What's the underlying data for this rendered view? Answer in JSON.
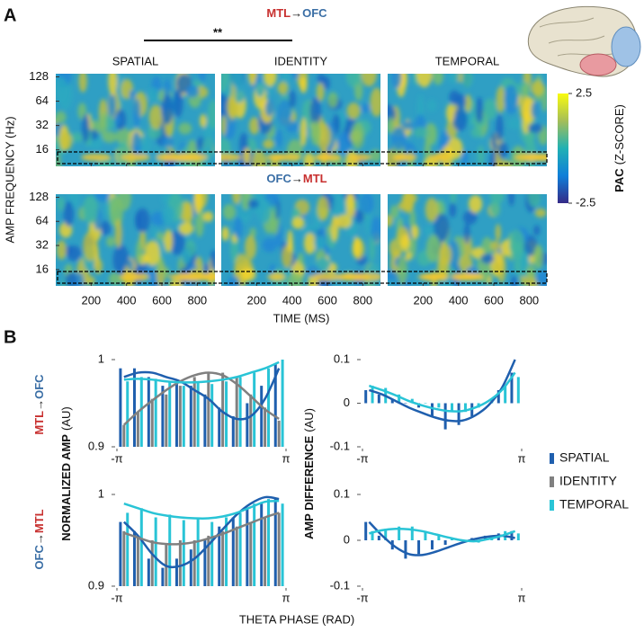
{
  "panel_a": {
    "label": "A",
    "significance": "**",
    "rows": [
      {
        "from": "MTL",
        "arrow": "→",
        "to": "OFC"
      },
      {
        "from": "OFC",
        "arrow": "→",
        "to": "MTL"
      }
    ],
    "columns": [
      "SPATIAL",
      "IDENTITY",
      "TEMPORAL"
    ],
    "ylabel": "AMP FREQUENCY (Hz)",
    "yticks": [
      128,
      64,
      32,
      16
    ],
    "ylim": [
      10,
      140
    ],
    "log_y": true,
    "xlabel": "TIME (MS)",
    "xticks": [
      200,
      400,
      600,
      800
    ],
    "xlim": [
      0,
      900
    ],
    "colorbar": {
      "lim": [
        -2.5,
        2.5
      ],
      "ticks": [
        2.5,
        -2.5
      ],
      "label_bold": "PAC",
      "label": "(Z-SCORE)"
    }
  },
  "panel_b": {
    "label": "B",
    "xlabel": "THETA PHASE (RAD)",
    "xlim": [
      -3.1416,
      3.1416
    ],
    "xticks": [
      {
        "value": -3.1416,
        "label": "-π"
      },
      {
        "value": 3.1416,
        "label": "π"
      }
    ],
    "x": [
      -2.88,
      -2.36,
      -1.83,
      -1.31,
      -0.79,
      -0.26,
      0.26,
      0.79,
      1.31,
      1.83,
      2.36,
      2.88
    ],
    "legend": [
      {
        "name": "SPATIAL",
        "color": "#1f5fae"
      },
      {
        "name": "IDENTITY",
        "color": "#808080"
      },
      {
        "name": "TEMPORAL",
        "color": "#29c4d6"
      }
    ],
    "rows": [
      {
        "from": "MTL",
        "arrow": "→",
        "to": "OFC"
      },
      {
        "from": "OFC",
        "arrow": "→",
        "to": "MTL"
      }
    ],
    "left": {
      "ylabel_bold": "NORMALIZED AMP",
      "ylabel": "(AU)",
      "ylim": [
        0.9,
        1.0
      ],
      "yticks": [
        1,
        0.9
      ],
      "plots": [
        {
          "series": [
            {
              "bars": [
                0.99,
                0.99,
                0.98,
                0.97,
                0.975,
                0.97,
                0.96,
                0.945,
                0.935,
                0.95,
                0.97,
                0.995
              ],
              "fit": [
                0.98,
                0.985,
                0.985,
                0.98,
                0.975,
                0.965,
                0.955,
                0.94,
                0.932,
                0.935,
                0.955,
                0.99
              ]
            },
            {
              "bars": [
                0.925,
                0.94,
                0.955,
                0.96,
                0.97,
                0.98,
                0.985,
                0.985,
                0.98,
                0.96,
                0.945,
                0.93
              ],
              "fit": [
                0.925,
                0.94,
                0.953,
                0.965,
                0.975,
                0.982,
                0.985,
                0.982,
                0.972,
                0.958,
                0.943,
                0.932
              ]
            },
            {
              "bars": [
                0.975,
                0.98,
                0.978,
                0.975,
                0.97,
                0.975,
                0.972,
                0.975,
                0.98,
                0.985,
                0.99,
                1.0
              ],
              "fit": [
                0.977,
                0.978,
                0.977,
                0.975,
                0.974,
                0.974,
                0.975,
                0.977,
                0.98,
                0.985,
                0.99,
                0.997
              ]
            }
          ]
        },
        {
          "series": [
            {
              "bars": [
                0.97,
                0.96,
                0.93,
                0.92,
                0.93,
                0.94,
                0.95,
                0.965,
                0.975,
                0.985,
                0.99,
                0.995
              ],
              "fit": [
                0.97,
                0.955,
                0.935,
                0.922,
                0.922,
                0.93,
                0.945,
                0.962,
                0.978,
                0.99,
                0.997,
                0.995
              ]
            },
            {
              "bars": [
                0.96,
                0.955,
                0.95,
                0.945,
                0.95,
                0.95,
                0.955,
                0.96,
                0.965,
                0.97,
                0.975,
                0.98
              ],
              "fit": [
                0.958,
                0.953,
                0.948,
                0.946,
                0.946,
                0.948,
                0.952,
                0.957,
                0.963,
                0.969,
                0.975,
                0.98
              ]
            },
            {
              "bars": [
                0.98,
                0.985,
                0.975,
                0.978,
                0.972,
                0.975,
                0.97,
                0.975,
                0.98,
                0.99,
                0.995,
                0.99
              ],
              "fit": [
                0.99,
                0.985,
                0.98,
                0.977,
                0.975,
                0.974,
                0.974,
                0.976,
                0.98,
                0.986,
                0.992,
                0.993
              ]
            }
          ]
        }
      ]
    },
    "right": {
      "ylabel_bold": "AMP DIFFERENCE",
      "ylabel": "(AU)",
      "ylim": [
        -0.1,
        0.1
      ],
      "yticks": [
        0.1,
        0,
        -0.1
      ],
      "plots": [
        {
          "series": [
            {
              "bars": [
                0.03,
                0.02,
                0.01,
                0,
                -0.01,
                -0.03,
                -0.06,
                -0.05,
                -0.03,
                0,
                0.03,
                0.07
              ],
              "fit": [
                0.03,
                0.02,
                0.005,
                -0.01,
                -0.022,
                -0.033,
                -0.04,
                -0.04,
                -0.028,
                -0.005,
                0.035,
                0.1
              ]
            },
            null,
            {
              "bars": [
                0.04,
                0.035,
                0.02,
                0.01,
                0,
                -0.01,
                -0.02,
                -0.02,
                -0.01,
                0.01,
                0.04,
                0.06
              ],
              "fit": [
                0.04,
                0.03,
                0.018,
                0.005,
                -0.005,
                -0.013,
                -0.018,
                -0.018,
                -0.01,
                0.005,
                0.03,
                0.07
              ]
            }
          ]
        },
        {
          "series": [
            {
              "bars": [
                0.04,
                0.01,
                -0.02,
                -0.04,
                -0.03,
                -0.02,
                -0.01,
                0,
                0.005,
                0.01,
                0.015,
                0.02
              ],
              "fit": [
                0.04,
                0.01,
                -0.015,
                -0.03,
                -0.032,
                -0.025,
                -0.015,
                -0.005,
                0.003,
                0.008,
                0.01,
                0.005
              ]
            },
            null,
            {
              "bars": [
                0.02,
                0.025,
                0.03,
                0.03,
                0.02,
                0.01,
                0.005,
                0,
                -0.005,
                0.01,
                0.02,
                0.015
              ],
              "fit": [
                0.015,
                0.022,
                0.025,
                0.024,
                0.02,
                0.013,
                0.006,
                0,
                -0.002,
                0.003,
                0.01,
                0.02
              ]
            }
          ]
        }
      ]
    }
  }
}
